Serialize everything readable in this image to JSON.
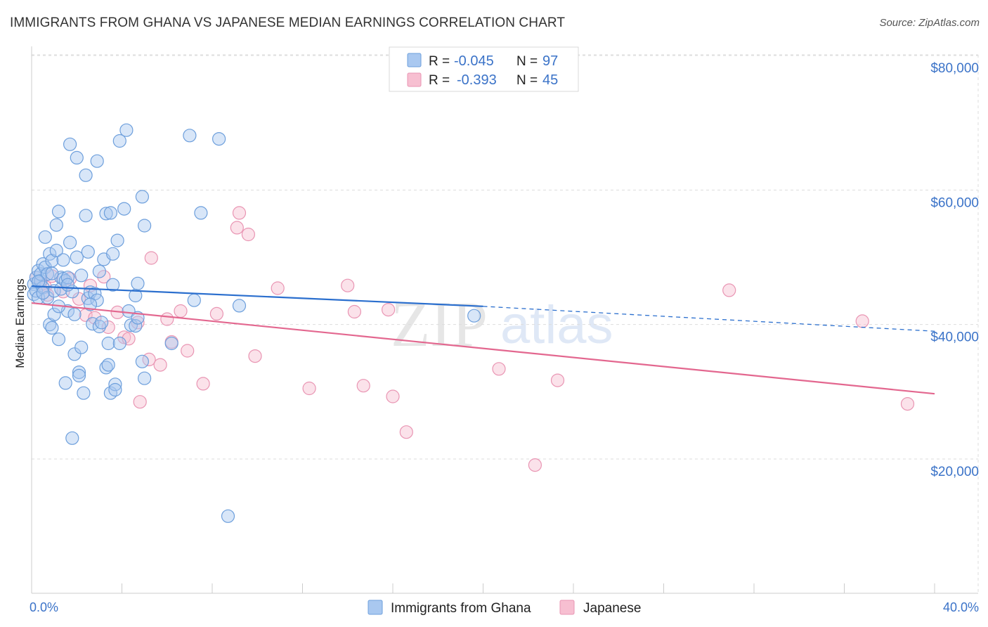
{
  "title": "IMMIGRANTS FROM GHANA VS JAPANESE MEDIAN EARNINGS CORRELATION CHART",
  "source": "Source: ZipAtlas.com",
  "watermark": {
    "zip": "ZIP",
    "atlas": "atlas"
  },
  "legend_top": {
    "r_label": "R =",
    "n_label": "N =",
    "rows": [
      {
        "r": "-0.045",
        "n": "97"
      },
      {
        "r": "-0.393",
        "n": "45"
      }
    ]
  },
  "colors": {
    "blue_fill": "#a9c8f0",
    "blue_stroke": "#6d9fdc",
    "blue_line": "#2b6fce",
    "pink_fill": "#f7bfd1",
    "pink_stroke": "#e995b3",
    "pink_line": "#e3678f",
    "tick_text": "#3b73c8",
    "grid": "#dddddd"
  },
  "chart_data": {
    "type": "scatter",
    "xlabel": "",
    "ylabel": "Median Earnings",
    "xlim": [
      0,
      40
    ],
    "ylim": [
      0,
      80000
    ],
    "x_tick_labels": [
      "0.0%",
      "40.0%"
    ],
    "y_ticks": [
      {
        "value": 20000,
        "label": "$20,000"
      },
      {
        "value": 40000,
        "label": "$40,000"
      },
      {
        "value": 60000,
        "label": "$60,000"
      },
      {
        "value": 80000,
        "label": "$80,000"
      }
    ],
    "grid": true,
    "legend_position": "top-center",
    "series": [
      {
        "name": "Immigrants from Ghana",
        "color": "#a9c8f0",
        "trend": {
          "x0": 0,
          "y0": 45700,
          "x1": 20,
          "y1": 42700,
          "dash_to_x": 40,
          "dash_to_y": 39000
        },
        "points": [
          [
            0.1,
            46000
          ],
          [
            0.1,
            44500
          ],
          [
            0.2,
            45000
          ],
          [
            0.2,
            47000
          ],
          [
            0.3,
            48000
          ],
          [
            0.3,
            44000
          ],
          [
            0.4,
            46500
          ],
          [
            0.4,
            47500
          ],
          [
            0.5,
            45500
          ],
          [
            0.5,
            49000
          ],
          [
            0.6,
            53000
          ],
          [
            0.6,
            48500
          ],
          [
            0.7,
            47500
          ],
          [
            0.7,
            44000
          ],
          [
            0.8,
            50500
          ],
          [
            0.8,
            40000
          ],
          [
            0.9,
            49500
          ],
          [
            0.9,
            39500
          ],
          [
            1.0,
            41500
          ],
          [
            1.0,
            45000
          ],
          [
            1.1,
            51000
          ],
          [
            1.1,
            54800
          ],
          [
            1.2,
            56800
          ],
          [
            1.2,
            37800
          ],
          [
            1.3,
            47000
          ],
          [
            1.3,
            45300
          ],
          [
            1.4,
            49600
          ],
          [
            1.4,
            46800
          ],
          [
            1.5,
            46500
          ],
          [
            1.5,
            31300
          ],
          [
            1.6,
            42000
          ],
          [
            1.6,
            47000
          ],
          [
            1.7,
            52200
          ],
          [
            1.7,
            66800
          ],
          [
            1.8,
            44900
          ],
          [
            1.8,
            23100
          ],
          [
            1.9,
            41500
          ],
          [
            1.9,
            35600
          ],
          [
            2.0,
            64800
          ],
          [
            2.0,
            50000
          ],
          [
            2.1,
            32900
          ],
          [
            2.1,
            32400
          ],
          [
            2.2,
            36600
          ],
          [
            2.3,
            29800
          ],
          [
            2.4,
            62200
          ],
          [
            2.4,
            56200
          ],
          [
            2.5,
            50800
          ],
          [
            2.5,
            43900
          ],
          [
            2.6,
            44800
          ],
          [
            2.7,
            40100
          ],
          [
            2.8,
            44600
          ],
          [
            2.9,
            64300
          ],
          [
            2.9,
            43600
          ],
          [
            3.0,
            39700
          ],
          [
            3.1,
            40300
          ],
          [
            3.2,
            49700
          ],
          [
            3.3,
            56500
          ],
          [
            3.3,
            33600
          ],
          [
            3.4,
            37200
          ],
          [
            3.4,
            34000
          ],
          [
            3.5,
            56600
          ],
          [
            3.5,
            29800
          ],
          [
            3.6,
            45900
          ],
          [
            3.6,
            50500
          ],
          [
            3.7,
            31100
          ],
          [
            3.7,
            30300
          ],
          [
            3.8,
            52500
          ],
          [
            3.9,
            37200
          ],
          [
            3.9,
            67300
          ],
          [
            4.1,
            57200
          ],
          [
            4.2,
            68900
          ],
          [
            4.3,
            42000
          ],
          [
            4.4,
            39900
          ],
          [
            4.6,
            39800
          ],
          [
            4.7,
            46100
          ],
          [
            4.7,
            41000
          ],
          [
            4.9,
            59000
          ],
          [
            4.9,
            34500
          ],
          [
            5.0,
            54700
          ],
          [
            5.0,
            32000
          ],
          [
            6.2,
            37200
          ],
          [
            7.0,
            68100
          ],
          [
            7.2,
            43600
          ],
          [
            7.5,
            56600
          ],
          [
            8.3,
            67600
          ],
          [
            8.7,
            11500
          ],
          [
            9.2,
            42800
          ],
          [
            19.6,
            41300
          ],
          [
            0.3,
            46400
          ],
          [
            0.5,
            44700
          ],
          [
            0.9,
            47600
          ],
          [
            1.2,
            42700
          ],
          [
            1.6,
            45900
          ],
          [
            2.2,
            47300
          ],
          [
            2.6,
            43000
          ],
          [
            3.0,
            47900
          ],
          [
            4.6,
            44300
          ]
        ]
      },
      {
        "name": "Japanese",
        "color": "#f7bfd1",
        "trend": {
          "x0": 0,
          "y0": 43200,
          "x1": 40,
          "y1": 29700
        },
        "points": [
          [
            0.2,
            47000
          ],
          [
            0.4,
            46200
          ],
          [
            0.6,
            45600
          ],
          [
            0.7,
            44400
          ],
          [
            0.9,
            47200
          ],
          [
            1.4,
            44900
          ],
          [
            1.7,
            46800
          ],
          [
            2.1,
            43800
          ],
          [
            2.4,
            41400
          ],
          [
            2.6,
            45800
          ],
          [
            2.8,
            41000
          ],
          [
            3.2,
            47100
          ],
          [
            3.4,
            39600
          ],
          [
            3.8,
            41800
          ],
          [
            4.1,
            38100
          ],
          [
            4.3,
            37900
          ],
          [
            4.7,
            40300
          ],
          [
            4.8,
            28500
          ],
          [
            5.2,
            34800
          ],
          [
            5.3,
            49900
          ],
          [
            5.7,
            34000
          ],
          [
            6.0,
            40800
          ],
          [
            6.2,
            37400
          ],
          [
            6.6,
            42000
          ],
          [
            6.9,
            36100
          ],
          [
            7.6,
            31200
          ],
          [
            8.2,
            41600
          ],
          [
            9.1,
            54400
          ],
          [
            9.2,
            56600
          ],
          [
            9.6,
            53400
          ],
          [
            9.9,
            35300
          ],
          [
            10.9,
            45400
          ],
          [
            12.3,
            30500
          ],
          [
            14.0,
            45800
          ],
          [
            14.3,
            41900
          ],
          [
            14.7,
            30900
          ],
          [
            15.8,
            42200
          ],
          [
            16.0,
            29300
          ],
          [
            16.6,
            24000
          ],
          [
            20.7,
            33400
          ],
          [
            22.3,
            19100
          ],
          [
            23.3,
            31700
          ],
          [
            30.9,
            45100
          ],
          [
            36.8,
            40500
          ],
          [
            38.8,
            28200
          ]
        ]
      }
    ]
  }
}
